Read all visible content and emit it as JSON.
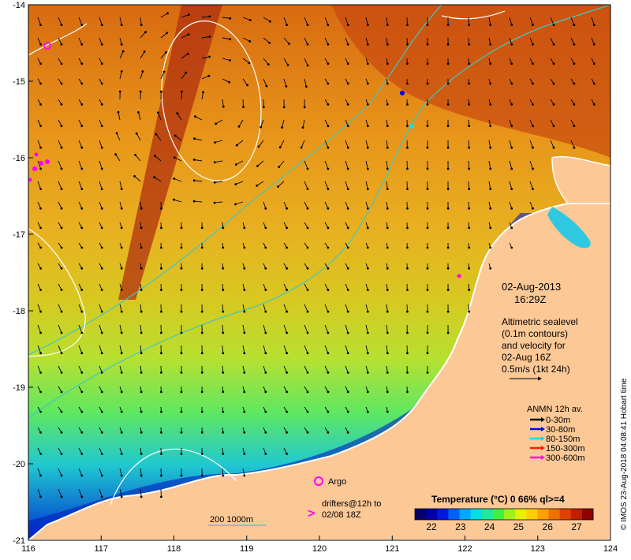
{
  "map": {
    "x_ticks": [
      "116",
      "117",
      "118",
      "119",
      "120",
      "121",
      "122",
      "123",
      "124"
    ],
    "y_ticks": [
      "-14",
      "-15",
      "-16",
      "-17",
      "-18",
      "-19",
      "-20",
      "-21"
    ]
  },
  "info": {
    "date": "02-Aug-2013",
    "time": "16:29Z",
    "desc": [
      "Altimetric sealevel",
      "(0.1m contours)",
      "and velocity for",
      "02-Aug 16Z",
      "0.5m/s (1kt 24h)"
    ]
  },
  "anmn": {
    "title": "ANMN 12h av.",
    "items": [
      {
        "label": "0-30m",
        "color": "#000000"
      },
      {
        "label": "30-80m",
        "color": "#0000ff"
      },
      {
        "label": "80-150m",
        "color": "#00e5e5"
      },
      {
        "label": "150-300m",
        "color": "#ff2000"
      },
      {
        "label": "300-600m",
        "color": "#ff00ff"
      }
    ]
  },
  "argo": {
    "label": "Argo",
    "color": "#ff00ff"
  },
  "drifters": {
    "symbol": ">",
    "label_line1": "drifters@12h to",
    "label_line2": "02/08 18Z",
    "color": "#ff00ff"
  },
  "isobath": {
    "label": "200  1000m",
    "color": "#40c8c0"
  },
  "colorbar": {
    "title": "Temperature (°C) 0 66% ql>=4",
    "ticks": [
      "22",
      "23",
      "24",
      "25",
      "26",
      "27"
    ],
    "colors": [
      "#08006a",
      "#0000a8",
      "#0018e0",
      "#0060ff",
      "#00a8ff",
      "#00e0e0",
      "#20e8a0",
      "#40f040",
      "#a0f020",
      "#e8f000",
      "#ffd000",
      "#ffa000",
      "#f07000",
      "#e04000",
      "#c02000",
      "#900000"
    ]
  },
  "credit": "© IMOS 23-Aug-2018 04:08:41 Hobart time"
}
